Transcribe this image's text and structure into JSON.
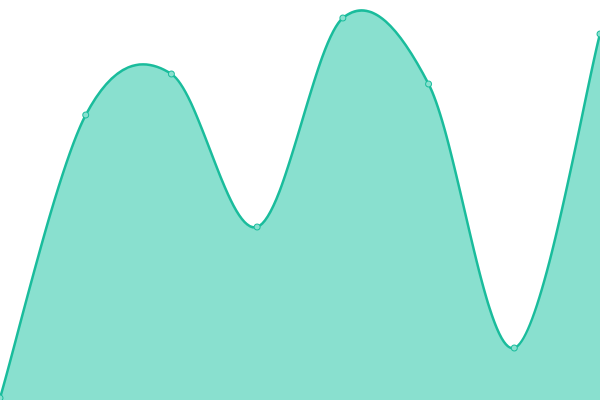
{
  "chart_data": {
    "type": "area",
    "categories": [
      null,
      null,
      null,
      null,
      null,
      null,
      null,
      null
    ],
    "series": [
      {
        "color": "#1abc9c",
        "fill": "#89e0cf",
        "values": [
          2,
          285,
          326,
          173,
          382,
          316,
          52,
          366
        ]
      }
    ],
    "ylim": [
      0,
      400
    ],
    "smooth": true
  }
}
